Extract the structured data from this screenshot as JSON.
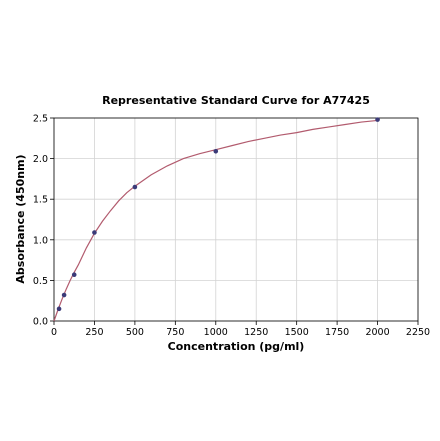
{
  "chart_data": {
    "type": "scatter",
    "title": "Representative Standard Curve for A77425",
    "xlabel": "Concentration (pg/ml)",
    "ylabel": "Absorbance (450nm)",
    "xlim": [
      0,
      2250
    ],
    "ylim": [
      0,
      2.5
    ],
    "x_ticks": [
      0,
      250,
      500,
      750,
      1000,
      1250,
      1500,
      1750,
      2000,
      2250
    ],
    "y_ticks": [
      0.0,
      0.5,
      1.0,
      1.5,
      2.0,
      2.5
    ],
    "x_tick_labels": [
      "0",
      "250",
      "500",
      "750",
      "1000",
      "1250",
      "1500",
      "1750",
      "2000",
      "2250"
    ],
    "y_tick_labels": [
      "0.0",
      "0.5",
      "1.0",
      "1.5",
      "2.0",
      "2.5"
    ],
    "grid": true,
    "series": [
      {
        "x": [
          31.25,
          62.5,
          125,
          250,
          500,
          1000,
          2000
        ],
        "y": [
          0.15,
          0.32,
          0.57,
          1.09,
          1.65,
          2.09,
          2.48
        ]
      }
    ],
    "fit_curve": {
      "x": [
        0,
        25,
        50,
        75,
        100,
        125,
        150,
        200,
        250,
        300,
        350,
        400,
        450,
        500,
        600,
        700,
        800,
        900,
        1000,
        1100,
        1200,
        1300,
        1400,
        1500,
        1600,
        1700,
        1800,
        1900,
        2000
      ],
      "y": [
        0.0,
        0.14,
        0.27,
        0.39,
        0.5,
        0.6,
        0.69,
        0.9,
        1.08,
        1.23,
        1.36,
        1.48,
        1.58,
        1.66,
        1.8,
        1.91,
        2.0,
        2.06,
        2.11,
        2.16,
        2.21,
        2.25,
        2.29,
        2.32,
        2.36,
        2.39,
        2.42,
        2.45,
        2.47
      ]
    },
    "colors": {
      "points": "#3b3a78",
      "curve": "#b25b6e"
    }
  }
}
